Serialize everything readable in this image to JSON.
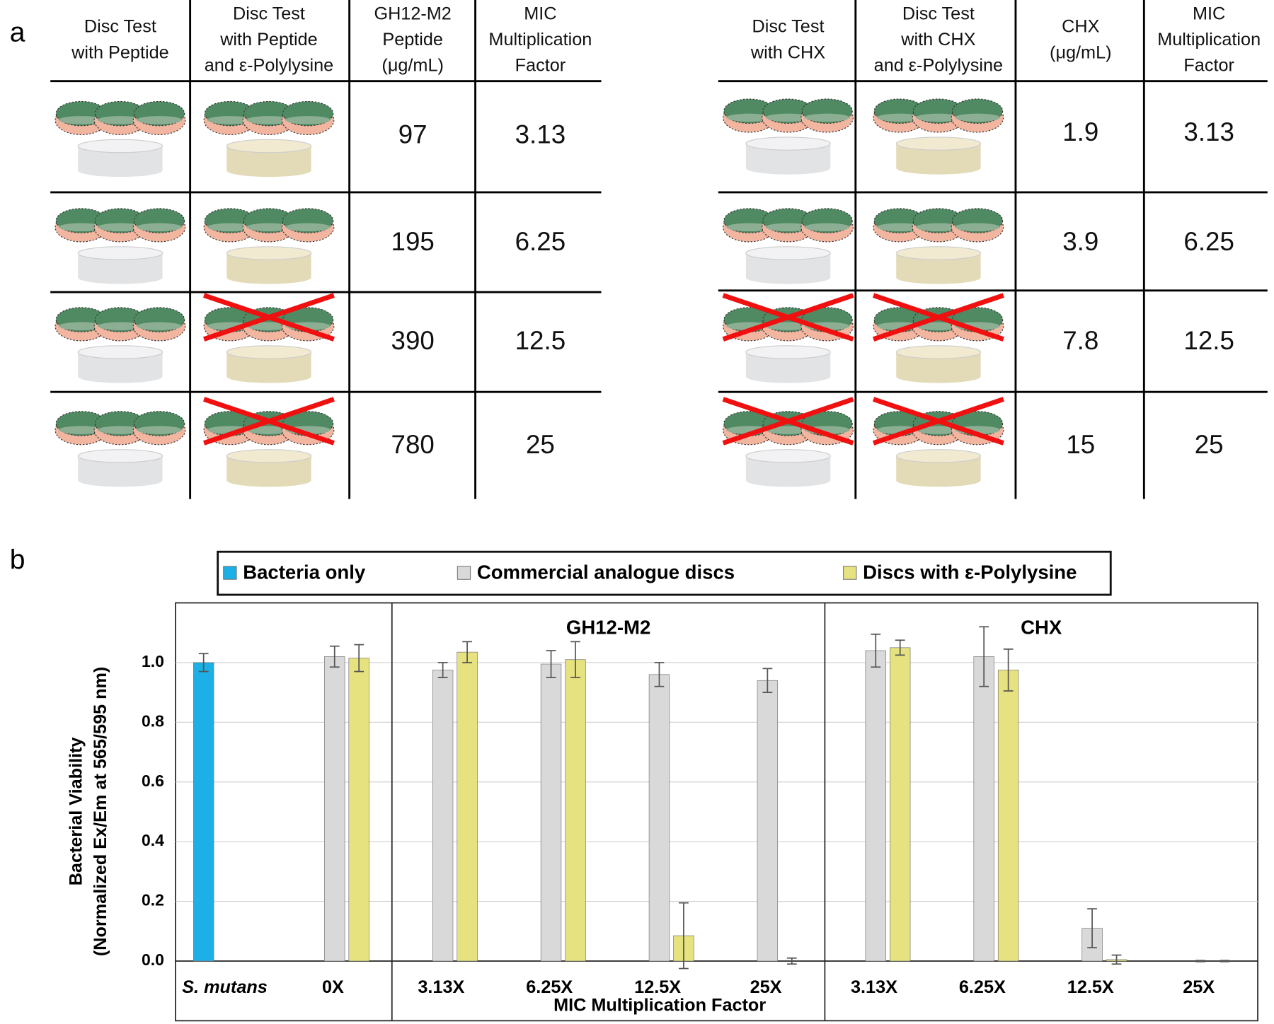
{
  "panel_labels": [
    "a",
    "b"
  ],
  "tables": [
    {
      "headers": [
        [
          "Disc Test",
          "with Peptide"
        ],
        [
          "Disc Test",
          "with Peptide",
          "and ε-Polylysine"
        ],
        [
          "GH12-M2",
          "Peptide",
          "(μg/mL)"
        ],
        [
          "MIC",
          "Multiplication",
          "Factor"
        ]
      ],
      "rows": [
        [
          97,
          3.13
        ],
        [
          195,
          6.25
        ],
        [
          390,
          12.5
        ],
        [
          780,
          25
        ]
      ],
      "crossed": [
        [
          false,
          false
        ],
        [
          false,
          false
        ],
        [
          false,
          true
        ],
        [
          false,
          true
        ]
      ]
    },
    {
      "headers": [
        [
          "Disc Test",
          "with CHX"
        ],
        [
          "Disc Test",
          "with CHX",
          "and ε-Polylysine"
        ],
        [
          "CHX",
          "(μg/mL)"
        ],
        [
          "MIC",
          "Multiplication",
          "Factor"
        ]
      ],
      "rows": [
        [
          1.9,
          3.13
        ],
        [
          3.9,
          6.25
        ],
        [
          7.8,
          12.5
        ],
        [
          15,
          25
        ]
      ],
      "crossed": [
        [
          false,
          false
        ],
        [
          false,
          false
        ],
        [
          true,
          true
        ],
        [
          true,
          true
        ]
      ]
    }
  ],
  "chart_data": {
    "type": "bar",
    "ylabel": [
      "Bacterial Viability",
      "(Normalized Ex/Em at 565/595 nm)"
    ],
    "xlabel": "MIC Multiplication Factor",
    "categories": [
      "S. mutans",
      "0X",
      "3.13X",
      "6.25X",
      "12.5X",
      "25X",
      "3.13X",
      "6.25X",
      "12.5X",
      "25X"
    ],
    "groups": [
      "GH12-M2",
      "CHX"
    ],
    "series": [
      {
        "name": "Bacteria only",
        "color": "#1cb0e6",
        "values": [
          1.0,
          null,
          null,
          null,
          null,
          null,
          null,
          null,
          null,
          null
        ],
        "errors": [
          0.03,
          null,
          null,
          null,
          null,
          null,
          null,
          null,
          null,
          null
        ]
      },
      {
        "name": "Commercial analogue discs",
        "color": "#d9d9d9",
        "values": [
          null,
          1.02,
          0.975,
          0.995,
          0.96,
          0.94,
          1.04,
          1.02,
          0.11,
          0
        ],
        "errors": [
          null,
          0.035,
          0.025,
          0.045,
          0.04,
          0.04,
          0.055,
          0.1,
          0.065,
          0.002
        ]
      },
      {
        "name": "Discs with ε-Polylysine",
        "color": "#e6e27f",
        "values": [
          null,
          1.015,
          1.035,
          1.01,
          0.085,
          0,
          1.05,
          0.975,
          0.005,
          0
        ],
        "errors": [
          null,
          0.045,
          0.035,
          0.06,
          0.11,
          0.01,
          0.025,
          0.07,
          0.015,
          0.002
        ]
      }
    ],
    "ylim": [
      -0.2,
      1.2
    ],
    "yticks": [
      {
        "value": 0,
        "label": "0.0"
      },
      0.2,
      0.4,
      0.6,
      0.8,
      {
        "value": 1,
        "label": "1.0"
      }
    ],
    "grid": true
  }
}
